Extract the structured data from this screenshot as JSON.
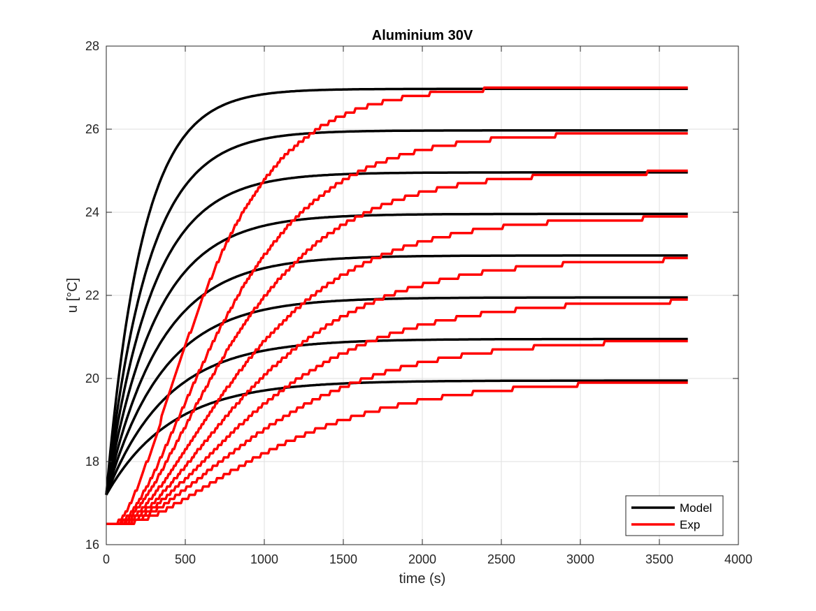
{
  "chart_data": {
    "type": "line",
    "title": "Aluminium 30V",
    "xlabel": "time (s)",
    "ylabel": "u [°C]",
    "xlim": [
      0,
      4000
    ],
    "ylim": [
      16,
      28
    ],
    "xticks": [
      0,
      500,
      1000,
      1500,
      2000,
      2500,
      3000,
      3500,
      4000
    ],
    "yticks": [
      16,
      18,
      20,
      22,
      24,
      26,
      28
    ],
    "grid": true,
    "legend": {
      "position": "bottom-right",
      "entries": [
        {
          "label": "Model",
          "color": "#000000"
        },
        {
          "label": "Exp",
          "color": "#ff0000"
        }
      ]
    },
    "x_end": 3680,
    "series": [
      {
        "group": "Model",
        "color": "#000000",
        "start": 17.2,
        "final": 26.97,
        "tau": 230,
        "delay": 0
      },
      {
        "group": "Model",
        "color": "#000000",
        "start": 17.2,
        "final": 25.97,
        "tau": 265,
        "delay": 0
      },
      {
        "group": "Model",
        "color": "#000000",
        "start": 17.2,
        "final": 24.96,
        "tau": 290,
        "delay": 0
      },
      {
        "group": "Model",
        "color": "#000000",
        "start": 17.2,
        "final": 23.96,
        "tau": 315,
        "delay": 0
      },
      {
        "group": "Model",
        "color": "#000000",
        "start": 17.2,
        "final": 22.96,
        "tau": 340,
        "delay": 0
      },
      {
        "group": "Model",
        "color": "#000000",
        "start": 17.2,
        "final": 21.95,
        "tau": 360,
        "delay": 0
      },
      {
        "group": "Model",
        "color": "#000000",
        "start": 17.2,
        "final": 20.95,
        "tau": 385,
        "delay": 0
      },
      {
        "group": "Model",
        "color": "#000000",
        "start": 17.2,
        "final": 19.95,
        "tau": 410,
        "delay": 0
      },
      {
        "group": "Exp",
        "color": "#ff0000",
        "start": 16.5,
        "final": 27.02,
        "tau": 330,
        "delay": 40
      },
      {
        "group": "Exp",
        "color": "#ff0000",
        "start": 16.5,
        "final": 25.92,
        "tau": 400,
        "delay": 50
      },
      {
        "group": "Exp",
        "color": "#ff0000",
        "start": 16.5,
        "final": 24.98,
        "tau": 430,
        "delay": 55
      },
      {
        "group": "Exp",
        "color": "#ff0000",
        "start": 16.5,
        "final": 23.9,
        "tau": 470,
        "delay": 60
      },
      {
        "group": "Exp",
        "color": "#ff0000",
        "start": 16.5,
        "final": 22.9,
        "tau": 500,
        "delay": 65
      },
      {
        "group": "Exp",
        "color": "#ff0000",
        "start": 16.5,
        "final": 21.9,
        "tau": 520,
        "delay": 70
      },
      {
        "group": "Exp",
        "color": "#ff0000",
        "start": 16.5,
        "final": 20.95,
        "tau": 540,
        "delay": 75
      },
      {
        "group": "Exp",
        "color": "#ff0000",
        "start": 16.5,
        "final": 19.97,
        "tau": 560,
        "delay": 80
      }
    ]
  }
}
